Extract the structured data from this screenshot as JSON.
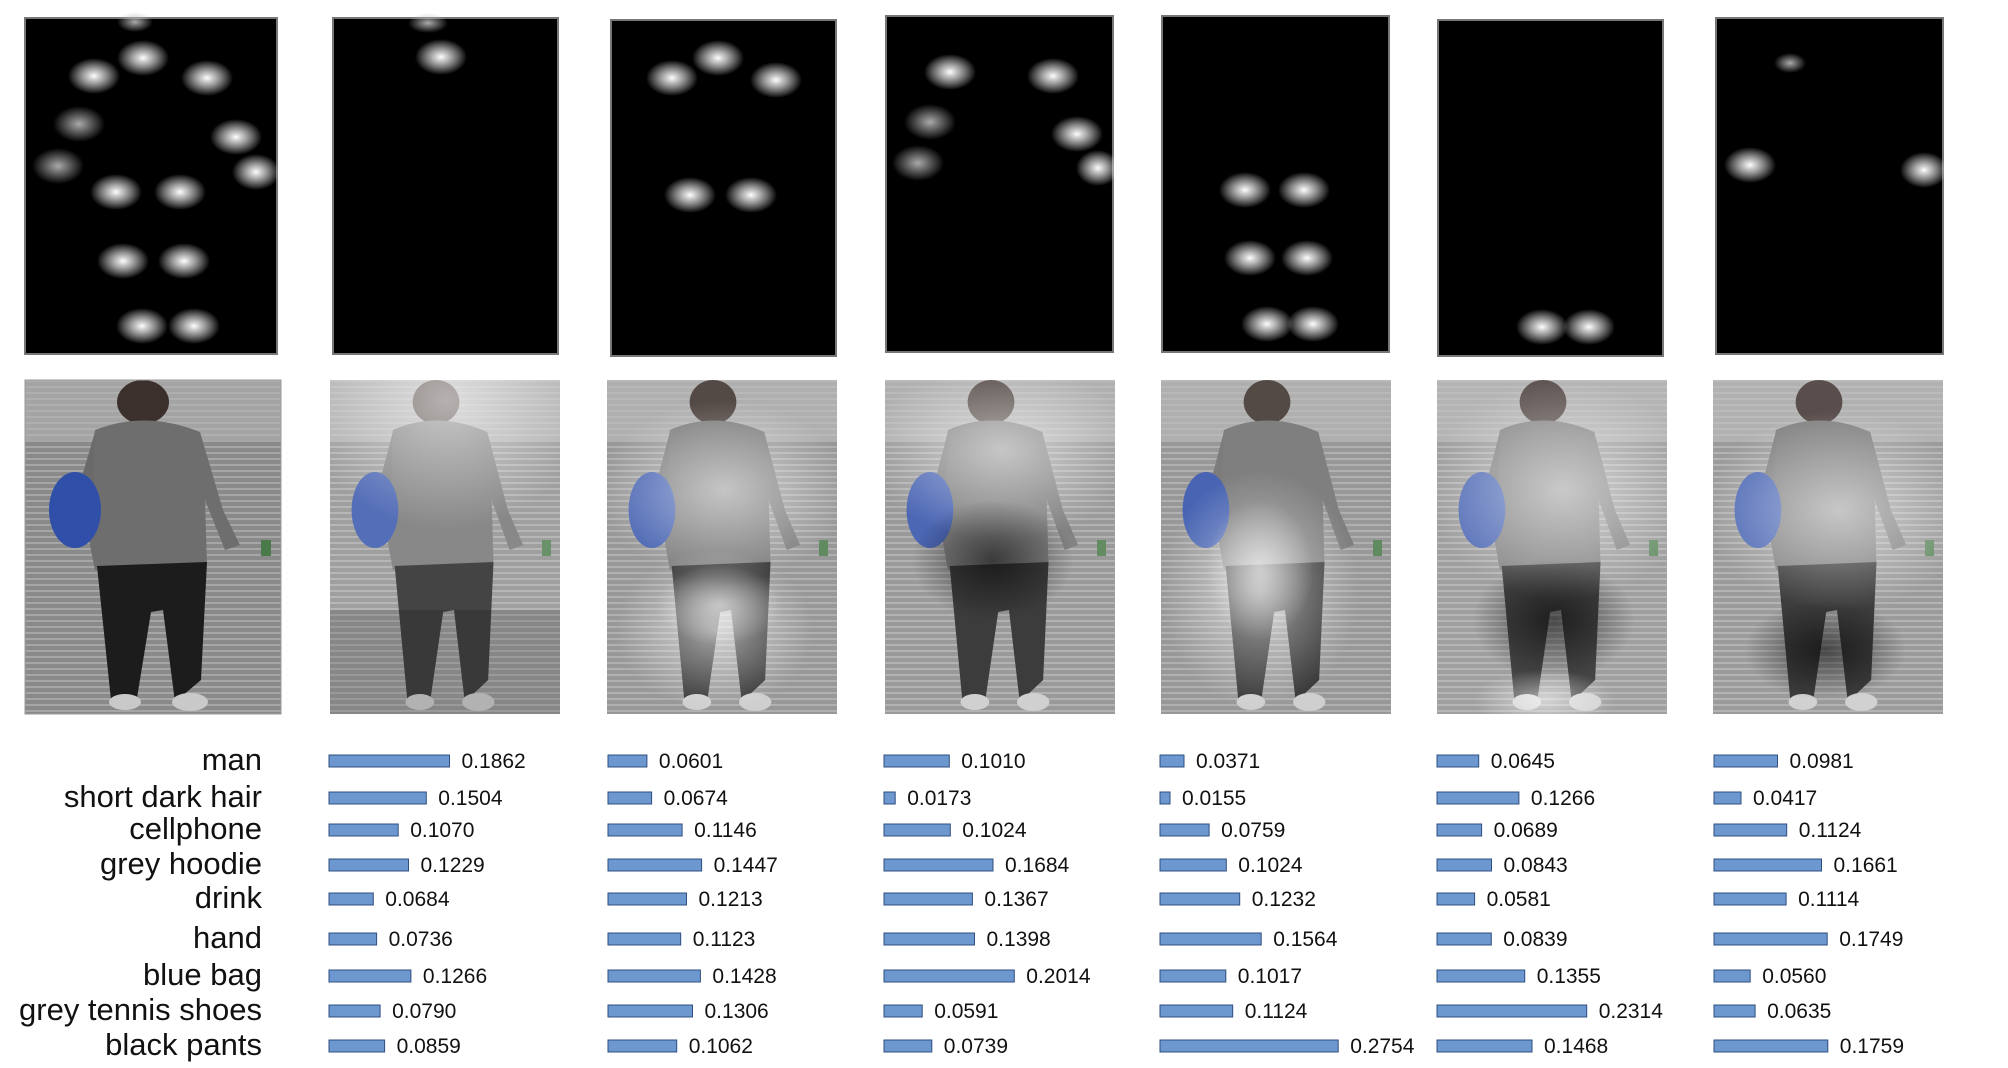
{
  "chart_data": {
    "type": "bar",
    "orientation": "horizontal",
    "categories": [
      "man",
      "short dark hair",
      "cellphone",
      "grey hoodie",
      "drink",
      "hand",
      "blue bag",
      "grey tennis shoes",
      "black pants"
    ],
    "series": [
      {
        "values": [
          0.1862,
          0.1504,
          0.107,
          0.1229,
          0.0684,
          0.0736,
          0.1266,
          0.079,
          0.0859
        ]
      },
      {
        "values": [
          0.0601,
          0.0674,
          0.1146,
          0.1447,
          0.1213,
          0.1123,
          0.1428,
          0.1306,
          0.1062
        ]
      },
      {
        "values": [
          0.101,
          0.0173,
          0.1024,
          0.1684,
          0.1367,
          0.1398,
          0.2014,
          0.0591,
          0.0739
        ]
      },
      {
        "values": [
          0.0371,
          0.0155,
          0.0759,
          0.1024,
          0.1232,
          0.1564,
          0.1017,
          0.1124,
          0.2754
        ]
      },
      {
        "values": [
          0.0645,
          0.1266,
          0.0689,
          0.0843,
          0.0581,
          0.0839,
          0.1355,
          0.2314,
          0.1468
        ]
      },
      {
        "values": [
          0.0981,
          0.0417,
          0.1124,
          0.1661,
          0.1114,
          0.1749,
          0.056,
          0.0635,
          0.1759
        ]
      }
    ],
    "value_labels": [
      [
        "0.1862",
        "0.1504",
        "0.1070",
        "0.1229",
        "0.0684",
        "0.0736",
        "0.1266",
        "0.0790",
        "0.0859"
      ],
      [
        "0.0601",
        "0.0674",
        "0.1146",
        "0.1447",
        "0.1213",
        "0.1123",
        "0.1428",
        "0.1306",
        "0.1062"
      ],
      [
        "0.1010",
        "0.0173",
        "0.1024",
        "0.1684",
        "0.1367",
        "0.1398",
        "0.2014",
        "0.0591",
        "0.0739"
      ],
      [
        "0.0371",
        "0.0155",
        "0.0759",
        "0.1024",
        "0.1232",
        "0.1564",
        "0.1017",
        "0.1124",
        "0.2754"
      ],
      [
        "0.0645",
        "0.1266",
        "0.0689",
        "0.0843",
        "0.0581",
        "0.0839",
        "0.1355",
        "0.2314",
        "0.1468"
      ],
      [
        "0.0981",
        "0.0417",
        "0.1124",
        "0.1661",
        "0.1114",
        "0.1749",
        "0.0560",
        "0.0635",
        "0.1759"
      ]
    ],
    "bar_color": "#6d97cf",
    "bar_edge_color": "#2f4f80",
    "title": "",
    "xlabel": "",
    "ylabel": "",
    "grid": false,
    "legend": "none"
  },
  "images": {
    "heatmap_count": 7,
    "overlay_count": 7,
    "heatmap_background": "#000000",
    "photo_subject": "person walking, grey hoodie, blue bag, black pants"
  }
}
